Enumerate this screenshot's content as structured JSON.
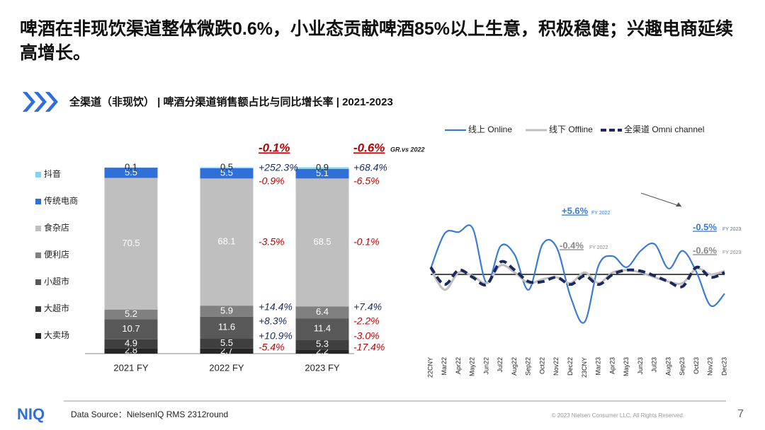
{
  "title": "啤酒在非现饮渠道整体微跌0.6%，小业态贡献啤酒85%以上生意，积极稳健；兴趣电商延续高增长。",
  "section_title": "全渠道（非现饮） | 啤酒分渠道销售额占比与同比增长率 | 2021-2023",
  "chart_data": [
    {
      "type": "bar",
      "stacked": true,
      "categories": [
        "2021 FY",
        "2022 FY",
        "2023 FY"
      ],
      "ylim": [
        0,
        100
      ],
      "series": [
        {
          "name": "大卖场",
          "color": "#262626",
          "values": [
            2.8,
            2.7,
            2.2
          ]
        },
        {
          "name": "大超市",
          "color": "#3f3f3f",
          "values": [
            4.9,
            5.5,
            5.3
          ]
        },
        {
          "name": "小超市",
          "color": "#595959",
          "values": [
            10.7,
            11.6,
            11.4
          ]
        },
        {
          "name": "便利店",
          "color": "#808080",
          "values": [
            5.2,
            5.9,
            6.4
          ]
        },
        {
          "name": "食杂店",
          "color": "#bfbfbf",
          "values": [
            70.5,
            68.1,
            68.5
          ]
        },
        {
          "name": "传统电商",
          "color": "#2f6fd8",
          "values": [
            5.5,
            5.5,
            5.1
          ]
        },
        {
          "name": "抖音",
          "color": "#7fd4f0",
          "values": [
            0.1,
            0.5,
            0.9
          ]
        }
      ],
      "growth": [
        {
          "total": "-0.1%",
          "items": [
            "-5.4%",
            "+10.9%",
            "+8.3%",
            "+14.4%",
            "-3.5%",
            "-0.9%",
            "+252.3%"
          ]
        },
        {
          "total": "-0.6%",
          "note": "GR.vs 2022",
          "items": [
            "-17.4%",
            "-3.0%",
            "-2.2%",
            "+7.4%",
            "-0.1%",
            "-6.5%",
            "+68.4%"
          ]
        }
      ]
    },
    {
      "type": "line",
      "categories": [
        "22CNY",
        "Mar22",
        "Apr22",
        "May22",
        "Jun22",
        "Jul22",
        "Aug22",
        "Sep22",
        "Oct22",
        "Nov22",
        "Dec22",
        "23CNY",
        "Mar23",
        "Apr23",
        "May23",
        "Jun23",
        "Jul23",
        "Aug23",
        "Sep23",
        "Oct23",
        "Nov23",
        "Dec23"
      ],
      "ylim": [
        -10,
        10
      ],
      "series": [
        {
          "name": "线上 Online",
          "color": "#3a7bd5",
          "values": [
            1.2,
            8.5,
            8.8,
            9.6,
            -1.8,
            5.9,
            4.1,
            -3.2,
            6.3,
            5.6,
            -4.7,
            -9.9,
            1.9,
            3.8,
            1.5,
            4.9,
            6.3,
            1.2,
            4.9,
            0.4,
            -6.5,
            -4.0
          ]
        },
        {
          "name": "线下 Offline",
          "color": "#bfbfbf",
          "values": [
            1.2,
            -3.2,
            0.4,
            -0.3,
            -1.8,
            1.9,
            0.4,
            -1.8,
            -1.0,
            -0.6,
            -1.8,
            0.4,
            -1.8,
            0.4,
            0.9,
            0.4,
            -0.6,
            -1.5,
            -1.8,
            1.2,
            0.0,
            0.7
          ]
        },
        {
          "name": "全渠道 Omni channel",
          "color": "#1a2a5e",
          "values": [
            1.5,
            -2.1,
            0.9,
            -0.6,
            -2.1,
            2.6,
            0.9,
            -1.5,
            -1.5,
            -0.6,
            -2.1,
            -0.3,
            -2.1,
            0.0,
            0.9,
            0.7,
            -0.3,
            -1.5,
            -2.5,
            1.5,
            -0.6,
            0.4
          ]
        }
      ],
      "annotations": [
        {
          "text": "+5.6%",
          "note": "FY 2022",
          "series": 0
        },
        {
          "text": "-0.4%",
          "note": "FY 2022",
          "series": 1
        },
        {
          "text": "-0.5%",
          "note": "FY 2023",
          "series": 0
        },
        {
          "text": "-0.6%",
          "note": "FY 2023",
          "series": 1
        }
      ]
    }
  ],
  "footer": {
    "logo": "NIQ",
    "source": "Data Source：NielsenIQ RMS 2312round",
    "copyright": "© 2023 Nielsen Consumer LLC. All Rights Reserved.",
    "page": "7"
  }
}
